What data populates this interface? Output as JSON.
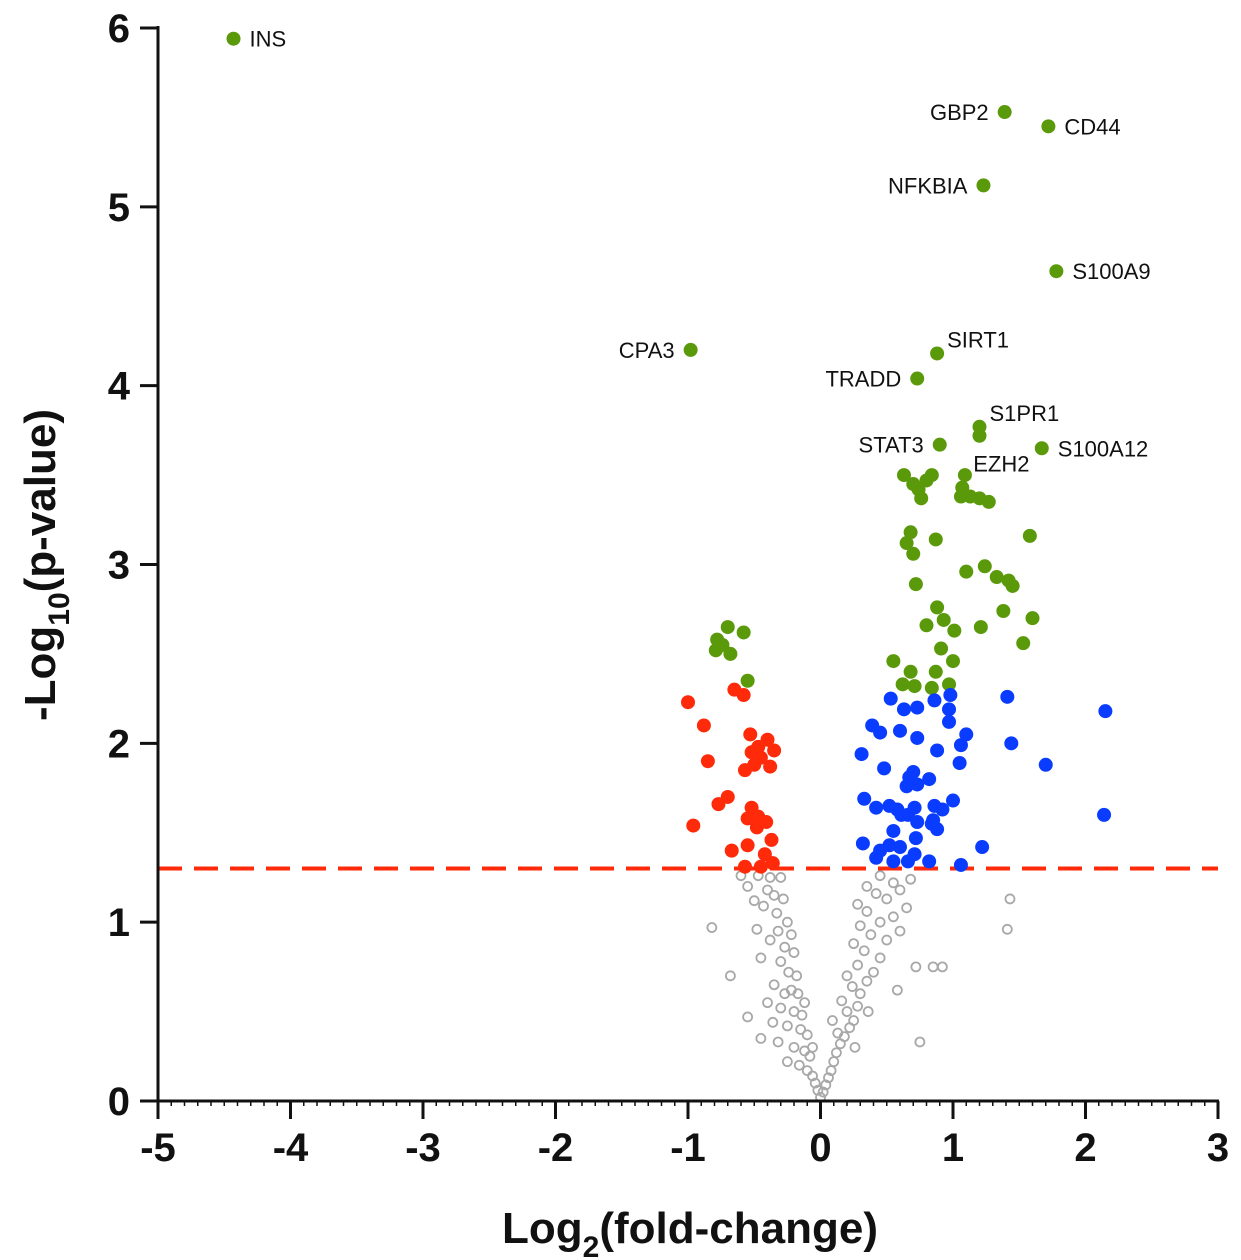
{
  "colors": {
    "up_significant": "#5a9a0a",
    "down_moderate": "#ff2a0a",
    "up_moderate": "#0a3cff",
    "not_significant": "#a8a8a8",
    "threshold": "#ff2a0a",
    "axis": "#111111"
  },
  "chart_data": {
    "type": "scatter",
    "title": "",
    "xlabel_main": "Log",
    "xlabel_sub": "2",
    "xlabel_rest": "(fold-change)",
    "ylabel_main": "-Log",
    "ylabel_sub": "10",
    "ylabel_rest": "(p-value)",
    "xlim": [
      -5,
      3
    ],
    "ylim": [
      0,
      6
    ],
    "xticks": [
      -5,
      -4,
      -3,
      -2,
      -1,
      0,
      1,
      2,
      3
    ],
    "xtick_labels": [
      "-5",
      "-4",
      "-3",
      "-2",
      "-1",
      "0",
      "1",
      "2",
      "3"
    ],
    "yticks": [
      0,
      1,
      2,
      3,
      4,
      5,
      6
    ],
    "ytick_labels": [
      "0",
      "1",
      "2",
      "3",
      "4",
      "5",
      "6"
    ],
    "threshold_y": 1.3,
    "labeled_points": [
      {
        "label": "INS",
        "x": -4.43,
        "y": 5.94,
        "side": "right"
      },
      {
        "label": "GBP2",
        "x": 1.39,
        "y": 5.53,
        "side": "left"
      },
      {
        "label": "CD44",
        "x": 1.72,
        "y": 5.45,
        "side": "right"
      },
      {
        "label": "NFKBIA",
        "x": 1.23,
        "y": 5.12,
        "side": "left"
      },
      {
        "label": "S100A9",
        "x": 1.78,
        "y": 4.64,
        "side": "right"
      },
      {
        "label": "SIRT1",
        "x": 0.88,
        "y": 4.18,
        "side": "right-up"
      },
      {
        "label": "CPA3",
        "x": -0.98,
        "y": 4.2,
        "side": "left"
      },
      {
        "label": "TRADD",
        "x": 0.73,
        "y": 4.04,
        "side": "left"
      },
      {
        "label": "S1PR1",
        "x": 1.2,
        "y": 3.77,
        "side": "right-up"
      },
      {
        "label": "STAT3",
        "x": 0.9,
        "y": 3.67,
        "side": "left"
      },
      {
        "label": "EZH2",
        "x": 1.2,
        "y": 3.72,
        "side": "below-left"
      },
      {
        "label": "S100A12",
        "x": 1.67,
        "y": 3.65,
        "side": "right"
      }
    ],
    "series": [
      {
        "group": "up_significant",
        "points": [
          [
            -0.78,
            2.58
          ],
          [
            -0.74,
            2.55
          ],
          [
            -0.79,
            2.52
          ],
          [
            -0.7,
            2.65
          ],
          [
            -0.68,
            2.5
          ],
          [
            -0.58,
            2.62
          ],
          [
            -0.55,
            2.35
          ],
          [
            0.63,
            3.5
          ],
          [
            0.7,
            3.45
          ],
          [
            0.74,
            3.42
          ],
          [
            0.76,
            3.37
          ],
          [
            0.84,
            3.5
          ],
          [
            0.8,
            3.47
          ],
          [
            1.09,
            3.5
          ],
          [
            1.07,
            3.43
          ],
          [
            1.06,
            3.38
          ],
          [
            1.13,
            3.38
          ],
          [
            1.2,
            3.37
          ],
          [
            1.27,
            3.35
          ],
          [
            0.68,
            3.18
          ],
          [
            0.65,
            3.12
          ],
          [
            0.7,
            3.06
          ],
          [
            0.87,
            3.14
          ],
          [
            1.58,
            3.16
          ],
          [
            1.1,
            2.96
          ],
          [
            1.24,
            2.99
          ],
          [
            1.33,
            2.93
          ],
          [
            1.42,
            2.91
          ],
          [
            1.45,
            2.88
          ],
          [
            0.72,
            2.89
          ],
          [
            0.88,
            2.76
          ],
          [
            1.38,
            2.74
          ],
          [
            0.93,
            2.69
          ],
          [
            1.01,
            2.63
          ],
          [
            1.21,
            2.65
          ],
          [
            1.6,
            2.7
          ],
          [
            0.8,
            2.66
          ],
          [
            0.91,
            2.53
          ],
          [
            1.53,
            2.56
          ],
          [
            0.68,
            2.4
          ],
          [
            0.55,
            2.46
          ],
          [
            1.0,
            2.46
          ],
          [
            0.87,
            2.4
          ],
          [
            0.62,
            2.33
          ],
          [
            0.71,
            2.32
          ],
          [
            0.84,
            2.31
          ],
          [
            0.97,
            2.33
          ]
        ]
      },
      {
        "group": "down_moderate",
        "points": [
          [
            -1.0,
            2.23
          ],
          [
            -0.88,
            2.1
          ],
          [
            -0.65,
            2.3
          ],
          [
            -0.58,
            2.27
          ],
          [
            -0.53,
            2.05
          ],
          [
            -0.4,
            2.02
          ],
          [
            -0.47,
            1.98
          ],
          [
            -0.52,
            1.95
          ],
          [
            -0.35,
            1.96
          ],
          [
            -0.45,
            1.92
          ],
          [
            -0.5,
            1.88
          ],
          [
            -0.38,
            1.87
          ],
          [
            -0.85,
            1.9
          ],
          [
            -0.57,
            1.85
          ],
          [
            -0.7,
            1.7
          ],
          [
            -0.77,
            1.66
          ],
          [
            -0.52,
            1.64
          ],
          [
            -0.47,
            1.59
          ],
          [
            -0.55,
            1.58
          ],
          [
            -0.48,
            1.53
          ],
          [
            -0.41,
            1.56
          ],
          [
            -0.96,
            1.54
          ],
          [
            -0.37,
            1.46
          ],
          [
            -0.55,
            1.43
          ],
          [
            -0.42,
            1.38
          ],
          [
            -0.67,
            1.4
          ],
          [
            -0.36,
            1.33
          ],
          [
            -0.45,
            1.31
          ],
          [
            -0.57,
            1.31
          ]
        ]
      },
      {
        "group": "up_moderate",
        "points": [
          [
            0.53,
            2.25
          ],
          [
            0.63,
            2.19
          ],
          [
            0.73,
            2.2
          ],
          [
            0.86,
            2.24
          ],
          [
            0.98,
            2.27
          ],
          [
            0.97,
            2.19
          ],
          [
            1.41,
            2.26
          ],
          [
            2.15,
            2.18
          ],
          [
            0.39,
            2.1
          ],
          [
            0.45,
            2.06
          ],
          [
            0.6,
            2.07
          ],
          [
            0.73,
            2.03
          ],
          [
            0.97,
            2.12
          ],
          [
            1.1,
            2.05
          ],
          [
            1.06,
            1.99
          ],
          [
            0.88,
            1.96
          ],
          [
            1.44,
            2.0
          ],
          [
            0.31,
            1.94
          ],
          [
            0.48,
            1.86
          ],
          [
            0.67,
            1.81
          ],
          [
            0.73,
            1.77
          ],
          [
            0.82,
            1.8
          ],
          [
            0.7,
            1.84
          ],
          [
            0.65,
            1.76
          ],
          [
            1.05,
            1.89
          ],
          [
            1.7,
            1.88
          ],
          [
            0.33,
            1.69
          ],
          [
            0.42,
            1.64
          ],
          [
            0.52,
            1.65
          ],
          [
            0.58,
            1.63
          ],
          [
            0.61,
            1.6
          ],
          [
            0.66,
            1.6
          ],
          [
            0.71,
            1.64
          ],
          [
            0.86,
            1.65
          ],
          [
            0.92,
            1.63
          ],
          [
            1.0,
            1.68
          ],
          [
            0.85,
            1.57
          ],
          [
            0.73,
            1.56
          ],
          [
            0.55,
            1.51
          ],
          [
            0.72,
            1.47
          ],
          [
            0.88,
            1.52
          ],
          [
            0.84,
            1.55
          ],
          [
            2.14,
            1.6
          ],
          [
            0.32,
            1.44
          ],
          [
            0.45,
            1.4
          ],
          [
            0.52,
            1.43
          ],
          [
            0.6,
            1.42
          ],
          [
            0.42,
            1.36
          ],
          [
            0.55,
            1.34
          ],
          [
            0.66,
            1.34
          ],
          [
            1.22,
            1.42
          ],
          [
            1.06,
            1.32
          ],
          [
            0.82,
            1.34
          ],
          [
            0.71,
            1.38
          ]
        ]
      },
      {
        "group": "not_significant",
        "points": [
          [
            -0.82,
            0.97
          ],
          [
            -0.6,
            1.26
          ],
          [
            -0.47,
            1.26
          ],
          [
            -0.38,
            1.25
          ],
          [
            -0.3,
            1.25
          ],
          [
            -0.55,
            1.2
          ],
          [
            -0.4,
            1.18
          ],
          [
            -0.5,
            1.12
          ],
          [
            -0.35,
            1.15
          ],
          [
            -0.28,
            1.13
          ],
          [
            -0.43,
            1.09
          ],
          [
            -0.33,
            1.05
          ],
          [
            -0.25,
            1.0
          ],
          [
            -0.48,
            0.96
          ],
          [
            -0.32,
            0.95
          ],
          [
            -0.22,
            0.93
          ],
          [
            -0.38,
            0.9
          ],
          [
            -0.27,
            0.86
          ],
          [
            -0.2,
            0.83
          ],
          [
            -0.45,
            0.8
          ],
          [
            -0.3,
            0.78
          ],
          [
            -0.68,
            0.7
          ],
          [
            -0.24,
            0.72
          ],
          [
            -0.18,
            0.7
          ],
          [
            -0.35,
            0.65
          ],
          [
            -0.27,
            0.6
          ],
          [
            -0.17,
            0.6
          ],
          [
            -0.4,
            0.55
          ],
          [
            -0.3,
            0.52
          ],
          [
            -0.2,
            0.5
          ],
          [
            -0.14,
            0.48
          ],
          [
            -0.55,
            0.47
          ],
          [
            -0.36,
            0.44
          ],
          [
            -0.25,
            0.42
          ],
          [
            -0.15,
            0.4
          ],
          [
            -0.1,
            0.37
          ],
          [
            -0.45,
            0.35
          ],
          [
            -0.32,
            0.33
          ],
          [
            -0.2,
            0.3
          ],
          [
            -0.12,
            0.28
          ],
          [
            -0.08,
            0.25
          ],
          [
            -0.25,
            0.22
          ],
          [
            -0.16,
            0.2
          ],
          [
            -0.1,
            0.17
          ],
          [
            -0.06,
            0.14
          ],
          [
            -0.04,
            0.1
          ],
          [
            -0.02,
            0.06
          ],
          [
            0.0,
            0.02
          ],
          [
            0.02,
            0.05
          ],
          [
            0.04,
            0.09
          ],
          [
            0.06,
            0.13
          ],
          [
            0.08,
            0.17
          ],
          [
            0.1,
            0.22
          ],
          [
            0.12,
            0.27
          ],
          [
            0.15,
            0.32
          ],
          [
            0.18,
            0.36
          ],
          [
            0.22,
            0.41
          ],
          [
            0.25,
            0.45
          ],
          [
            0.2,
            0.5
          ],
          [
            0.28,
            0.53
          ],
          [
            0.16,
            0.56
          ],
          [
            0.3,
            0.6
          ],
          [
            0.24,
            0.64
          ],
          [
            0.35,
            0.67
          ],
          [
            0.2,
            0.7
          ],
          [
            0.4,
            0.72
          ],
          [
            0.28,
            0.76
          ],
          [
            0.45,
            0.8
          ],
          [
            0.33,
            0.84
          ],
          [
            0.25,
            0.88
          ],
          [
            0.5,
            0.9
          ],
          [
            0.38,
            0.93
          ],
          [
            0.6,
            0.95
          ],
          [
            0.3,
            0.98
          ],
          [
            0.45,
            1.0
          ],
          [
            0.55,
            1.03
          ],
          [
            0.35,
            1.06
          ],
          [
            0.65,
            1.08
          ],
          [
            0.28,
            1.1
          ],
          [
            0.5,
            1.13
          ],
          [
            0.42,
            1.16
          ],
          [
            0.6,
            1.18
          ],
          [
            0.35,
            1.2
          ],
          [
            0.55,
            1.22
          ],
          [
            0.68,
            1.24
          ],
          [
            0.45,
            1.26
          ],
          [
            0.72,
            0.75
          ],
          [
            0.85,
            0.75
          ],
          [
            0.92,
            0.75
          ],
          [
            0.58,
            0.62
          ],
          [
            0.75,
            0.33
          ],
          [
            1.43,
            1.13
          ],
          [
            1.41,
            0.96
          ],
          [
            0.13,
            0.38
          ],
          [
            -0.06,
            0.3
          ],
          [
            0.09,
            0.45
          ],
          [
            -0.12,
            0.55
          ],
          [
            0.26,
            0.3
          ],
          [
            -0.22,
            0.62
          ],
          [
            0.36,
            0.5
          ]
        ]
      }
    ]
  }
}
